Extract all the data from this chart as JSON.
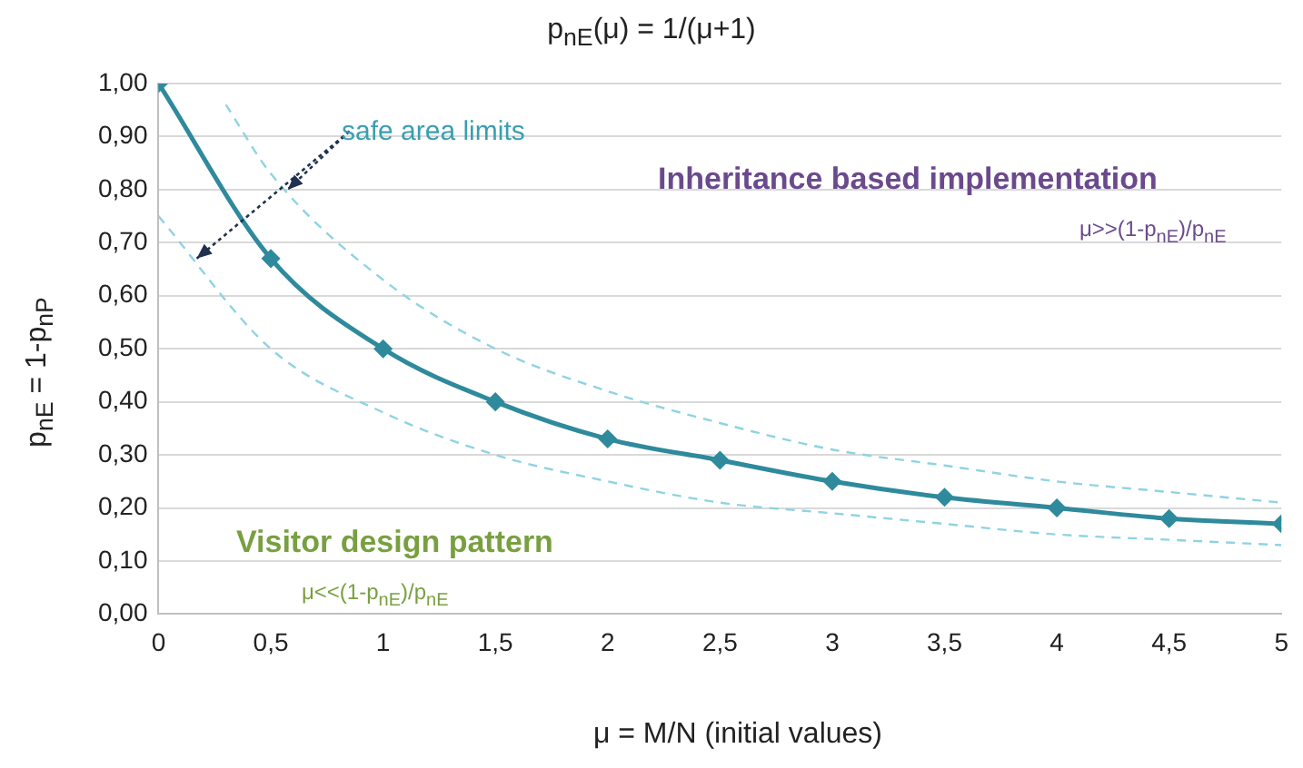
{
  "chart_data": {
    "type": "line",
    "title": "p$_{nE}$(μ) = 1/(μ+1)",
    "xlabel": "μ = M/N (initial values)",
    "ylabel": "p$_{nE}$ = 1-p$_{nP}$",
    "annotations": [
      {
        "text": "safe area limits",
        "x": 0.17,
        "y": 0.67
      },
      "Inheritance based implementation",
      "μ>>(1-p$_{nE}$)/p$_{nE}$",
      "Visitor design pattern",
      "μ<<(1-p$_{nE}$)/p$_{nE}$"
    ],
    "xlim": [
      0,
      5
    ],
    "xticks": [
      0,
      {
        "value": 0.5,
        "label": "0,5"
      },
      1,
      {
        "value": 1.5,
        "label": "1,5"
      },
      2,
      {
        "value": 2.5,
        "label": "2,5"
      },
      3,
      {
        "value": 3.5,
        "label": "3,5"
      },
      4,
      {
        "value": 4.5,
        "label": "4,5"
      },
      5
    ],
    "ylim": [
      0,
      1
    ],
    "yticks": [
      {
        "value": 0,
        "label": "0,00"
      },
      {
        "value": 0.1,
        "label": "0,10"
      },
      {
        "value": 0.2,
        "label": "0,20"
      },
      {
        "value": 0.3,
        "label": "0,30"
      },
      {
        "value": 0.4,
        "label": "0,40"
      },
      {
        "value": 0.5,
        "label": "0,50"
      },
      {
        "value": 0.6,
        "label": "0,60"
      },
      {
        "value": 0.7,
        "label": "0,70"
      },
      {
        "value": 0.8,
        "label": "0,80"
      },
      {
        "value": 0.9,
        "label": "0,90"
      },
      {
        "value": 1,
        "label": "1,00"
      }
    ],
    "grid": "y",
    "legend": false,
    "series": [
      {
        "color": "#8fd3e3",
        "line_style": "dashed",
        "marker": "none",
        "x": [
          0.3,
          0.5,
          1,
          1.5,
          2,
          2.5,
          3,
          3.5,
          4,
          4.5,
          5
        ],
        "values": [
          0.96,
          0.83,
          0.63,
          0.5,
          0.42,
          0.36,
          0.31,
          0.28,
          0.25,
          0.23,
          0.21
        ]
      },
      {
        "color": "#8fd3e3",
        "line_style": "dashed",
        "marker": "none",
        "x": [
          0,
          0.5,
          1,
          1.5,
          2,
          2.5,
          3,
          3.5,
          4,
          4.5,
          5
        ],
        "values": [
          0.75,
          0.5,
          0.38,
          0.3,
          0.25,
          0.21,
          0.19,
          0.17,
          0.15,
          0.14,
          0.13
        ]
      },
      {
        "color": "#2e8a9c",
        "line_style": "solid",
        "marker": "diamond",
        "x": [
          0,
          0.5,
          1,
          1.5,
          2,
          2.5,
          3,
          3.5,
          4,
          4.5,
          5
        ],
        "values": [
          1.0,
          0.67,
          0.5,
          0.4,
          0.33,
          0.29,
          0.25,
          0.22,
          0.2,
          0.18,
          0.17
        ]
      }
    ]
  }
}
